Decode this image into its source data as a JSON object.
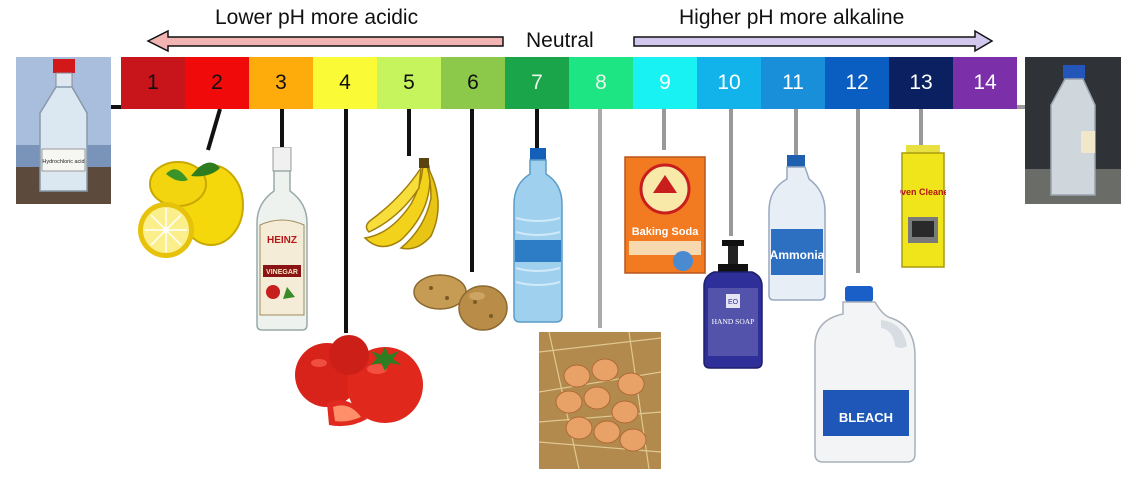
{
  "header": {
    "acidic_label": "Lower pH more acidic",
    "neutral_label": "Neutral",
    "alkaline_label": "Higher pH more alkaline"
  },
  "scale": [
    {
      "ph": "1",
      "color": "#c8141b",
      "text_color": "#111111"
    },
    {
      "ph": "2",
      "color": "#f10a0a",
      "text_color": "#111111"
    },
    {
      "ph": "3",
      "color": "#fdac0c",
      "text_color": "#111111"
    },
    {
      "ph": "4",
      "color": "#fafb36",
      "text_color": "#111111"
    },
    {
      "ph": "5",
      "color": "#c6f45c",
      "text_color": "#111111"
    },
    {
      "ph": "6",
      "color": "#8cc94b",
      "text_color": "#111111"
    },
    {
      "ph": "7",
      "color": "#1aa54a",
      "text_color": "#e8f5e8"
    },
    {
      "ph": "8",
      "color": "#1de584",
      "text_color": "#e8f5e8"
    },
    {
      "ph": "9",
      "color": "#18f2f2",
      "text_color": "#ffffff"
    },
    {
      "ph": "10",
      "color": "#12b3ea",
      "text_color": "#ffffff"
    },
    {
      "ph": "11",
      "color": "#1a8fd9",
      "text_color": "#ffffff"
    },
    {
      "ph": "12",
      "color": "#0a5ec2",
      "text_color": "#ffffff"
    },
    {
      "ph": "13",
      "color": "#0b2060",
      "text_color": "#ffffff"
    },
    {
      "ph": "14",
      "color": "#7b2fa8",
      "text_color": "#ffffff"
    }
  ],
  "arrows": {
    "acidic_fill": "#f2b3b3",
    "alkaline_fill": "#d2c8ee"
  },
  "items": {
    "hydrochloric_acid": {
      "ph": 1,
      "icon": "acid-bottle-icon",
      "label": "Hydrochloric acid"
    },
    "lemon": {
      "ph": 2,
      "icon": "lemon-icon"
    },
    "vinegar": {
      "ph": 3,
      "icon": "vinegar-bottle-icon",
      "brand": "HEINZ",
      "label": "VINEGAR"
    },
    "tomato": {
      "ph": 4,
      "icon": "tomato-icon"
    },
    "banana": {
      "ph": 5,
      "icon": "banana-icon"
    },
    "potato": {
      "ph": 6,
      "icon": "potato-icon"
    },
    "water": {
      "ph": 7,
      "icon": "water-bottle-icon"
    },
    "eggs": {
      "ph": 8,
      "icon": "eggs-icon"
    },
    "baking_soda": {
      "ph": 9,
      "icon": "baking-soda-box-icon",
      "label": "Baking Soda"
    },
    "hand_soap": {
      "ph": 10,
      "icon": "hand-soap-icon",
      "brand": "EO",
      "label": "HAND SOAP"
    },
    "ammonia": {
      "ph": 11,
      "icon": "ammonia-jug-icon",
      "label": "Ammonia"
    },
    "bleach": {
      "ph": 12,
      "icon": "bleach-jug-icon",
      "label": "BLEACH"
    },
    "oven_cleaner": {
      "ph": 13,
      "icon": "oven-cleaner-can-icon",
      "label": "Oven Cleaner"
    },
    "lye_solution": {
      "ph": 14,
      "icon": "base-bottle-icon"
    }
  }
}
